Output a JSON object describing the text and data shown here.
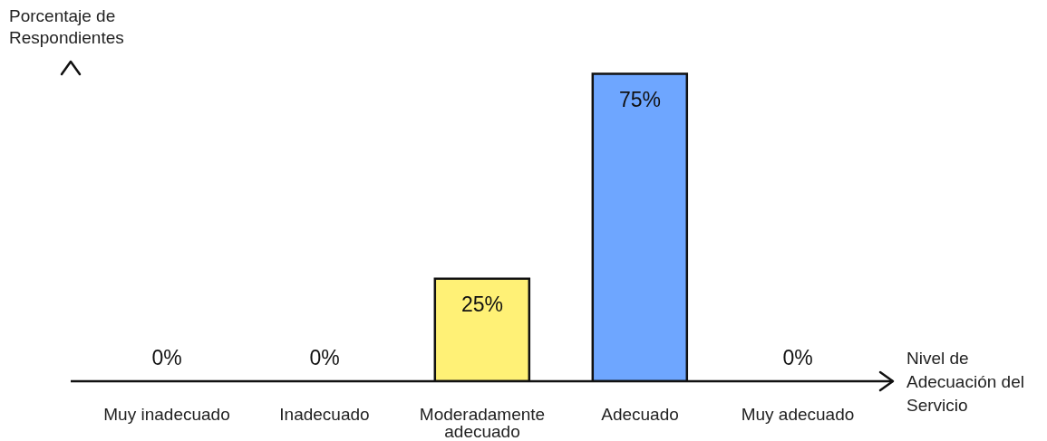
{
  "chart_data": {
    "type": "bar",
    "xlabel": "Nivel de Adecuación del Servicio",
    "ylabel": "Porcentaje de Respondientes",
    "categories": [
      "Muy inadecuado",
      "Inadecuado",
      "Moderadamente adecuado",
      "Adecuado",
      "Muy adecuado"
    ],
    "values": [
      0,
      0,
      25,
      75,
      0
    ],
    "colors": [
      "#fff176",
      "#fff176",
      "#fff176",
      "#6ea6ff",
      "#6ea6ff"
    ],
    "value_labels": [
      "0%",
      "0%",
      "25%",
      "75%",
      "0%"
    ],
    "tick_labels": "x",
    "grid": false,
    "legend": false
  }
}
